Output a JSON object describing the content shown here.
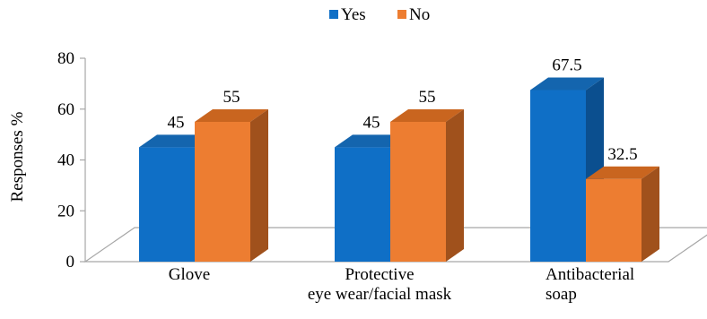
{
  "chart_data": {
    "type": "bar",
    "style": "3d-clustered-column",
    "categories": [
      [
        "Glove"
      ],
      [
        "Protective",
        "eye wear/facial mask"
      ],
      [
        "Antibacterial",
        "soap"
      ]
    ],
    "series": [
      {
        "name": "Yes",
        "values": [
          45,
          45,
          67.5
        ],
        "color": "#0F6FC6",
        "side_color": "#0B4F8F",
        "top_color": "#1465AE",
        "labels": [
          "45",
          "45",
          "67.5"
        ]
      },
      {
        "name": "No",
        "values": [
          55,
          55,
          32.5
        ],
        "color": "#ED7D31",
        "side_color": "#A0511C",
        "top_color": "#C9651F",
        "labels": [
          "55",
          "55",
          "32.5"
        ]
      }
    ],
    "ylabel": "Responses %",
    "xlabel": "",
    "ylim": [
      0,
      80
    ],
    "yticks": [
      "0",
      "20",
      "40",
      "60",
      "80"
    ],
    "legend_position": "top-center",
    "grid": false
  }
}
